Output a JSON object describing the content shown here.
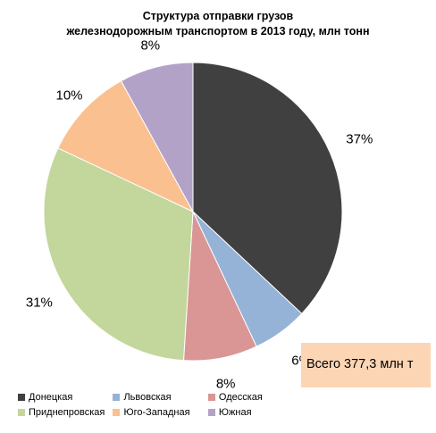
{
  "title_line1": "Структура отправки грузов",
  "title_line2": "железнодорожным транспортом в 2013 году, млн тонн",
  "total_label": "Всего 377,3 млн т",
  "chart_data": {
    "type": "pie",
    "title": "Структура отправки грузов железнодорожным транспортом в 2013 году, млн тонн",
    "categories": [
      "Донецкая",
      "Львовская",
      "Одесская",
      "Приднепровская",
      "Юго-Западная",
      "Южная"
    ],
    "values": [
      37,
      6,
      8,
      31,
      10,
      8
    ],
    "value_labels": [
      "37%",
      "6%",
      "8%",
      "31%",
      "10%",
      "8%"
    ],
    "colors": [
      "#404040",
      "#95b3d7",
      "#d99694",
      "#c3d69b",
      "#fac090",
      "#b3a2c7"
    ],
    "start_angle_deg": 0,
    "direction": "clockwise",
    "legend_position": "bottom"
  }
}
